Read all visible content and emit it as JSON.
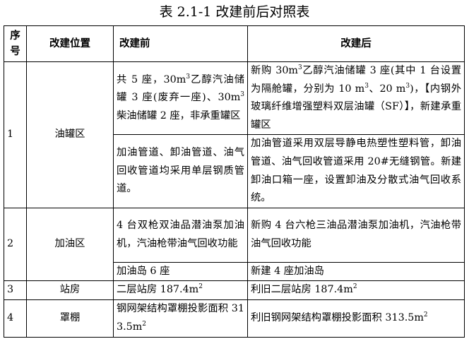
{
  "title": "表 2.1-1 改建前后对照表",
  "headers": [
    "序号",
    "改建位置",
    "改建前",
    "改建后"
  ],
  "rows": [
    {
      "no": "1",
      "location": "油罐区",
      "items": [
        {
          "before": [
            "共 5 座，30m",
            "3",
            "乙醇汽油储罐 3 座(废弃一座)、30m",
            "3",
            "柴油储罐 2 座，非承重罐区"
          ],
          "after": [
            "新购 30m",
            "3",
            "乙醇汽油储罐 3 座(其中 1 台设置为隔舱罐，分别为 10 m",
            "3",
            "、20 m",
            "3",
            ")，【内钢外玻璃纤维增强塑料双层油罐（SF）】，新建承重罐区"
          ]
        },
        {
          "before": [
            "加油管道、卸油管道、油气回收管道均采用单层钢质管道。"
          ],
          "after": [
            "加油管道采用双层导静电热塑性塑料管，卸油管道、油气回收管道采用 20#无缝钢管。新建卸油口箱一座，设置卸油及分散式油气回收系统。"
          ]
        }
      ]
    },
    {
      "no": "2",
      "location": "加油区",
      "items": [
        {
          "before": [
            "4 台双枪双油品潜油泵加油机，汽油枪带油气回收功能"
          ],
          "after": [
            "新购 4 台六枪三油品潜油泵加油机，汽油枪带油气回收功能"
          ]
        },
        {
          "before": [
            "加油岛 6 座"
          ],
          "after": [
            "新建 4 座加油岛"
          ]
        }
      ]
    },
    {
      "no": "3",
      "location": "站房",
      "items": [
        {
          "before": [
            "二层站房 187.4m",
            "2"
          ],
          "after": [
            "利旧二层站房 187.4m",
            "2"
          ]
        }
      ]
    },
    {
      "no": "4",
      "location": "罩棚",
      "items": [
        {
          "before": [
            "钢网架结构罩棚投影面积 313.5m",
            "2"
          ],
          "after": [
            "利旧钢网架结构罩棚投影面积 313.5m",
            "2"
          ]
        }
      ]
    }
  ]
}
